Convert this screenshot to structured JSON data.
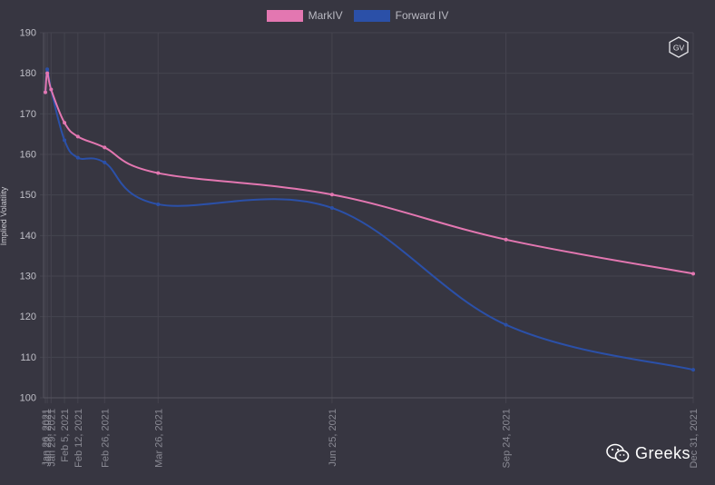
{
  "chart_data": {
    "type": "line",
    "title": "",
    "xlabel": "",
    "ylabel": "Implied Volatility",
    "ylim": [
      100,
      190
    ],
    "yticks": [
      100,
      110,
      120,
      130,
      140,
      150,
      160,
      170,
      180,
      190
    ],
    "grid": true,
    "legend_position": "top-center",
    "x": [
      "Jan 26, 2021",
      "Jan 27, 2021",
      "Jan 29, 2021",
      "Feb 5, 2021",
      "Feb 12, 2021",
      "Feb 26, 2021",
      "Mar 26, 2021",
      "Jun 25, 2021",
      "Sep 24, 2021",
      "Dec 31, 2021"
    ],
    "x_dates": [
      "2021-01-26",
      "2021-01-27",
      "2021-01-29",
      "2021-02-05",
      "2021-02-12",
      "2021-02-26",
      "2021-03-26",
      "2021-06-25",
      "2021-09-24",
      "2021-12-31"
    ],
    "series": [
      {
        "name": "MarkIV",
        "color": "#e377b1",
        "values": [
          175.3,
          180.0,
          176.0,
          167.8,
          164.4,
          161.7,
          155.4,
          150.1,
          139.0,
          130.6
        ]
      },
      {
        "name": "Forward IV",
        "color": "#2b50a8",
        "values": [
          175.3,
          181.0,
          176.0,
          163.5,
          159.2,
          158.0,
          147.7,
          146.8,
          118.0,
          106.9
        ]
      }
    ]
  },
  "badge": {
    "text": "GV"
  },
  "watermark": {
    "text": "Greeks",
    "icon": "wechat-icon"
  },
  "colors": {
    "background": "#373641",
    "grid": "#45444f",
    "axis_text": "#bfbfc7",
    "tick_text": "#8a8a94"
  }
}
